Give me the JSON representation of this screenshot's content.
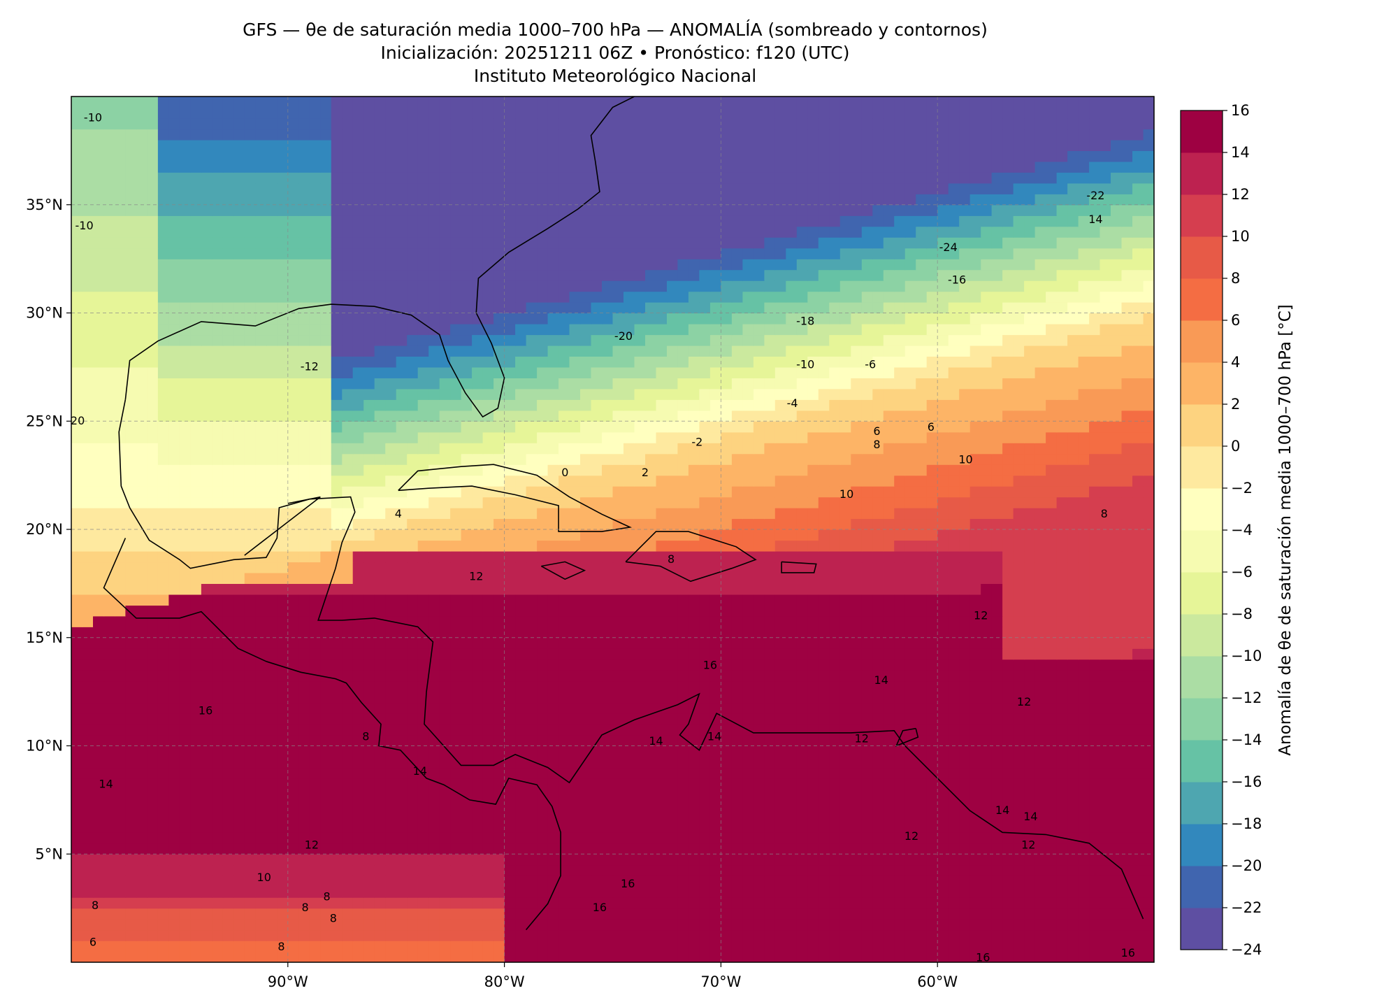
{
  "title": {
    "line1": "GFS — θe de saturación media 1000–700 hPa — ANOMALÍA (sombreado y contornos)",
    "line2": "Inicialización: 20251211 06Z   •   Pronóstico: f120 (UTC)",
    "line3": "Instituto Meteorológico Nacional"
  },
  "map": {
    "lon_range": [
      -100,
      -50
    ],
    "lat_range": [
      0,
      40
    ],
    "gridlines": true,
    "lon_ticks": [
      {
        "value": -90,
        "label": "90°W"
      },
      {
        "value": -80,
        "label": "80°W"
      },
      {
        "value": -70,
        "label": "70°W"
      },
      {
        "value": -60,
        "label": "60°W"
      }
    ],
    "lat_ticks": [
      {
        "value": 5,
        "label": "5°N"
      },
      {
        "value": 10,
        "label": "10°N"
      },
      {
        "value": 15,
        "label": "15°N"
      },
      {
        "value": 20,
        "label": "20°N"
      },
      {
        "value": 25,
        "label": "25°N"
      },
      {
        "value": 30,
        "label": "30°N"
      },
      {
        "value": 35,
        "label": "35°N"
      }
    ],
    "contour_labels": [
      {
        "text": "-10",
        "lon": -99,
        "lat": 39
      },
      {
        "text": "-10",
        "lon": -99.4,
        "lat": 34
      },
      {
        "text": "-20",
        "lon": -99.8,
        "lat": 25
      },
      {
        "text": "-12",
        "lon": -89,
        "lat": 27.5
      },
      {
        "text": "-24",
        "lon": -59.5,
        "lat": 33
      },
      {
        "text": "-22",
        "lon": -52.7,
        "lat": 35.4
      },
      {
        "text": "14",
        "lon": -52.7,
        "lat": 34.3
      },
      {
        "text": "-16",
        "lon": -59.1,
        "lat": 31.5
      },
      {
        "text": "-18",
        "lon": -66.1,
        "lat": 29.6
      },
      {
        "text": "-20",
        "lon": -74.5,
        "lat": 28.9
      },
      {
        "text": "-10",
        "lon": -66.1,
        "lat": 27.6
      },
      {
        "text": "-6",
        "lon": -63.1,
        "lat": 27.6
      },
      {
        "text": "-4",
        "lon": -66.7,
        "lat": 25.8
      },
      {
        "text": "-2",
        "lon": -71.1,
        "lat": 24
      },
      {
        "text": "0",
        "lon": -77.2,
        "lat": 22.6
      },
      {
        "text": "2",
        "lon": -73.5,
        "lat": 22.6
      },
      {
        "text": "6",
        "lon": -62.8,
        "lat": 24.5
      },
      {
        "text": "8",
        "lon": -62.8,
        "lat": 23.9
      },
      {
        "text": "6",
        "lon": -60.3,
        "lat": 24.7
      },
      {
        "text": "10",
        "lon": -58.7,
        "lat": 23.2
      },
      {
        "text": "10",
        "lon": -64.2,
        "lat": 21.6
      },
      {
        "text": "4",
        "lon": -84.9,
        "lat": 20.7
      },
      {
        "text": "8",
        "lon": -52.3,
        "lat": 20.7
      },
      {
        "text": "8",
        "lon": -72.3,
        "lat": 18.6
      },
      {
        "text": "12",
        "lon": -81.3,
        "lat": 17.8
      },
      {
        "text": "12",
        "lon": -58,
        "lat": 16
      },
      {
        "text": "14",
        "lon": -62.6,
        "lat": 13
      },
      {
        "text": "16",
        "lon": -70.5,
        "lat": 13.7
      },
      {
        "text": "12",
        "lon": -56,
        "lat": 12
      },
      {
        "text": "16",
        "lon": -93.8,
        "lat": 11.6
      },
      {
        "text": "8",
        "lon": -86.4,
        "lat": 10.4
      },
      {
        "text": "14",
        "lon": -73,
        "lat": 10.2
      },
      {
        "text": "14",
        "lon": -70.3,
        "lat": 10.4
      },
      {
        "text": "12",
        "lon": -63.5,
        "lat": 10.3
      },
      {
        "text": "14",
        "lon": -83.9,
        "lat": 8.8
      },
      {
        "text": "14",
        "lon": -98.4,
        "lat": 8.2
      },
      {
        "text": "14",
        "lon": -57,
        "lat": 7
      },
      {
        "text": "14",
        "lon": -55.7,
        "lat": 6.7
      },
      {
        "text": "12",
        "lon": -88.9,
        "lat": 5.4
      },
      {
        "text": "12",
        "lon": -61.2,
        "lat": 5.8
      },
      {
        "text": "12",
        "lon": -55.8,
        "lat": 5.4
      },
      {
        "text": "10",
        "lon": -91.1,
        "lat": 3.9
      },
      {
        "text": "8",
        "lon": -88.2,
        "lat": 3
      },
      {
        "text": "8",
        "lon": -98.9,
        "lat": 2.6
      },
      {
        "text": "8",
        "lon": -89.2,
        "lat": 2.5
      },
      {
        "text": "8",
        "lon": -87.9,
        "lat": 2
      },
      {
        "text": "6",
        "lon": -99,
        "lat": 0.9
      },
      {
        "text": "8",
        "lon": -90.3,
        "lat": 0.7
      },
      {
        "text": "16",
        "lon": -74.3,
        "lat": 3.6
      },
      {
        "text": "16",
        "lon": -75.6,
        "lat": 2.5
      },
      {
        "text": "16",
        "lon": -57.9,
        "lat": 0.2
      },
      {
        "text": "16",
        "lon": -51.2,
        "lat": 0.4
      }
    ]
  },
  "colorbar": {
    "label": "Anomalía de θe de saturación media 1000–700 hPa [°C]",
    "levels": [
      -24,
      -22,
      -20,
      -18,
      -16,
      -14,
      -12,
      -10,
      -8,
      -6,
      -4,
      -2,
      0,
      2,
      4,
      6,
      8,
      10,
      12,
      14,
      16
    ],
    "tick_labels": [
      "−24",
      "−22",
      "−20",
      "−18",
      "−16",
      "−14",
      "−12",
      "−10",
      "−8",
      "−6",
      "−4",
      "−2",
      "0",
      "2",
      "4",
      "6",
      "8",
      "10",
      "12",
      "14",
      "16"
    ],
    "colors": [
      "#5e4fa2",
      "#4065af",
      "#3288bd",
      "#4ea6b0",
      "#66c2a5",
      "#8cd2a4",
      "#abdda4",
      "#cbe99e",
      "#e6f598",
      "#f6fbb1",
      "#ffffbf",
      "#fee99f",
      "#fdd380",
      "#fdb466",
      "#f99a56",
      "#f46d43",
      "#e75a47",
      "#d53e4f",
      "#bd2250",
      "#9e0142"
    ]
  }
}
